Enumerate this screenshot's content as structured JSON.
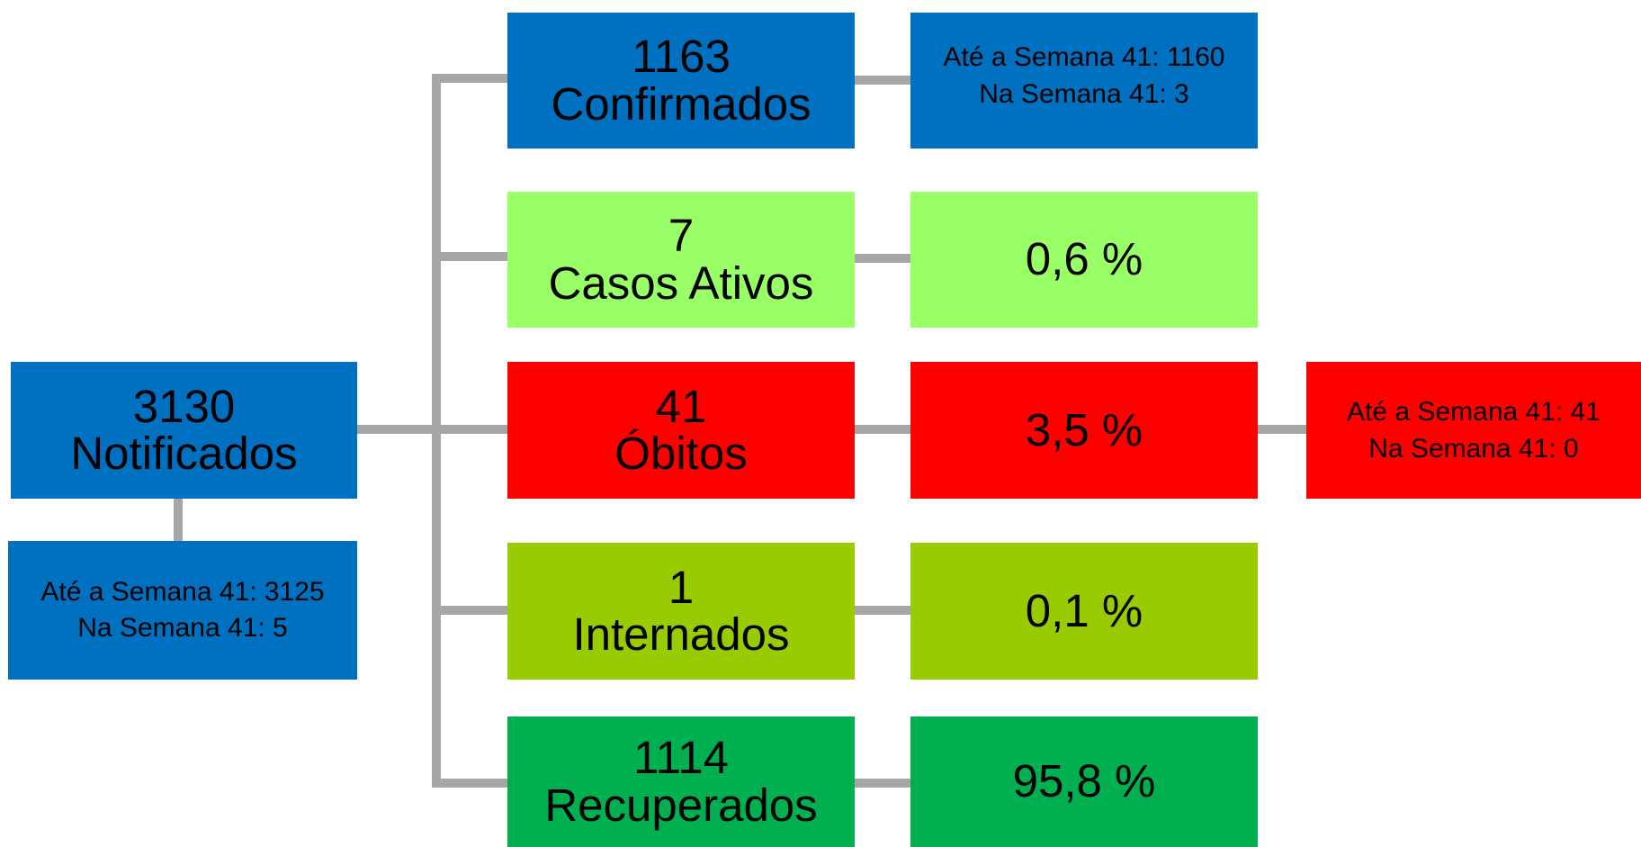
{
  "root": {
    "value": "3130",
    "label": "Notificados",
    "detail": [
      "Até a Semana 41: 3125",
      "Na Semana 41: 5"
    ]
  },
  "rows": [
    {
      "value": "1163",
      "label": "Confirmados",
      "detail": [
        "Até a Semana 41: 1160",
        "Na Semana 41: 3"
      ]
    },
    {
      "value": "7",
      "label": "Casos Ativos",
      "percent": "0,6 %"
    },
    {
      "value": "41",
      "label": "Óbitos",
      "percent": "3,5 %",
      "detail": [
        "Até a Semana 41: 41",
        "Na Semana 41: 0"
      ]
    },
    {
      "value": "1",
      "label": "Internados",
      "percent": "0,1 %"
    },
    {
      "value": "1114",
      "label": "Recuperados",
      "percent": "95,8 %"
    }
  ]
}
